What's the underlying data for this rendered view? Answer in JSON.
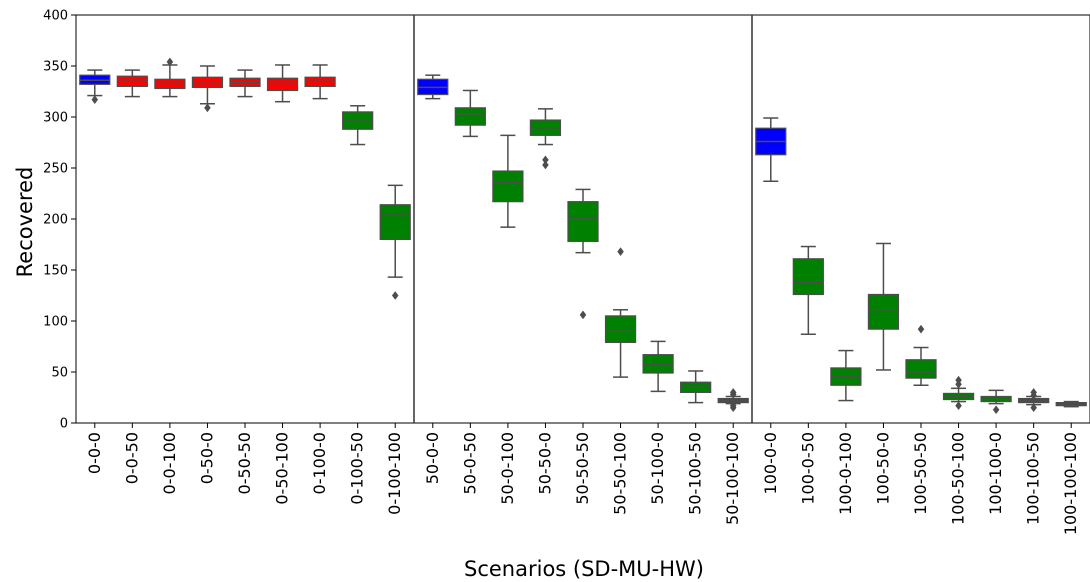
{
  "chart_data": {
    "type": "box",
    "ylabel": "Recovered",
    "xlabel": "Scenarios (SD-MU-HW)",
    "ylim": [
      0,
      400
    ],
    "yticks": [
      0,
      50,
      100,
      150,
      200,
      250,
      300,
      350,
      400
    ],
    "grid": false,
    "legend": "none",
    "group_separators_after": [
      "0-100-100",
      "50-100-100"
    ],
    "colors": {
      "baseline": "#0000ff",
      "red": "#ff0000",
      "green": "#008000",
      "line": "#4d4d4d"
    },
    "boxes": [
      {
        "label": "0-0-0",
        "color": "baseline",
        "whisker_low": 321,
        "q1": 332,
        "median": 336,
        "q3": 341,
        "whisker_high": 346,
        "outliers": [
          317
        ]
      },
      {
        "label": "0-0-50",
        "color": "red",
        "whisker_low": 320,
        "q1": 330,
        "median": 335,
        "q3": 340,
        "whisker_high": 346,
        "outliers": []
      },
      {
        "label": "0-0-100",
        "color": "red",
        "whisker_low": 320,
        "q1": 328,
        "median": 333,
        "q3": 337,
        "whisker_high": 351,
        "outliers": [
          354
        ]
      },
      {
        "label": "0-50-0",
        "color": "red",
        "whisker_low": 313,
        "q1": 329,
        "median": 333,
        "q3": 339,
        "whisker_high": 350,
        "outliers": [
          309
        ]
      },
      {
        "label": "0-50-50",
        "color": "red",
        "whisker_low": 320,
        "q1": 330,
        "median": 334,
        "q3": 338,
        "whisker_high": 346,
        "outliers": []
      },
      {
        "label": "0-50-100",
        "color": "red",
        "whisker_low": 315,
        "q1": 326,
        "median": 333,
        "q3": 338,
        "whisker_high": 351,
        "outliers": []
      },
      {
        "label": "0-100-0",
        "color": "red",
        "whisker_low": 318,
        "q1": 330,
        "median": 335,
        "q3": 339,
        "whisker_high": 351,
        "outliers": []
      },
      {
        "label": "0-100-50",
        "color": "green",
        "whisker_low": 273,
        "q1": 288,
        "median": 296,
        "q3": 305,
        "whisker_high": 311,
        "outliers": []
      },
      {
        "label": "0-100-100",
        "color": "green",
        "whisker_low": 143,
        "q1": 180,
        "median": 205,
        "q3": 214,
        "whisker_high": 233,
        "outliers": [
          125
        ]
      },
      {
        "label": "50-0-0",
        "color": "baseline",
        "whisker_low": 318,
        "q1": 322,
        "median": 329,
        "q3": 337,
        "whisker_high": 341,
        "outliers": []
      },
      {
        "label": "50-0-50",
        "color": "green",
        "whisker_low": 281,
        "q1": 292,
        "median": 303,
        "q3": 309,
        "whisker_high": 326,
        "outliers": []
      },
      {
        "label": "50-0-100",
        "color": "green",
        "whisker_low": 192,
        "q1": 217,
        "median": 236,
        "q3": 247,
        "whisker_high": 282,
        "outliers": []
      },
      {
        "label": "50-50-0",
        "color": "green",
        "whisker_low": 273,
        "q1": 282,
        "median": 288,
        "q3": 297,
        "whisker_high": 308,
        "outliers": [
          258,
          253
        ]
      },
      {
        "label": "50-50-50",
        "color": "green",
        "whisker_low": 167,
        "q1": 178,
        "median": 200,
        "q3": 217,
        "whisker_high": 229,
        "outliers": [
          106
        ]
      },
      {
        "label": "50-50-100",
        "color": "green",
        "whisker_low": 45,
        "q1": 79,
        "median": 90,
        "q3": 105,
        "whisker_high": 111,
        "outliers": [
          168
        ]
      },
      {
        "label": "50-100-0",
        "color": "green",
        "whisker_low": 31,
        "q1": 49,
        "median": 57,
        "q3": 67,
        "whisker_high": 80,
        "outliers": []
      },
      {
        "label": "50-100-50",
        "color": "green",
        "whisker_low": 20,
        "q1": 30,
        "median": 35,
        "q3": 40,
        "whisker_high": 51,
        "outliers": []
      },
      {
        "label": "50-100-100",
        "color": "green",
        "whisker_low": 19,
        "q1": 20,
        "median": 22,
        "q3": 24,
        "whisker_high": 26,
        "outliers": [
          30,
          28,
          17,
          15
        ]
      },
      {
        "label": "100-0-0",
        "color": "baseline",
        "whisker_low": 237,
        "q1": 263,
        "median": 276,
        "q3": 289,
        "whisker_high": 299,
        "outliers": []
      },
      {
        "label": "100-0-50",
        "color": "green",
        "whisker_low": 87,
        "q1": 126,
        "median": 138,
        "q3": 161,
        "whisker_high": 173,
        "outliers": []
      },
      {
        "label": "100-0-100",
        "color": "green",
        "whisker_low": 22,
        "q1": 37,
        "median": 46,
        "q3": 54,
        "whisker_high": 71,
        "outliers": []
      },
      {
        "label": "100-50-0",
        "color": "green",
        "whisker_low": 52,
        "q1": 92,
        "median": 111,
        "q3": 126,
        "whisker_high": 176,
        "outliers": []
      },
      {
        "label": "100-50-50",
        "color": "green",
        "whisker_low": 37,
        "q1": 44,
        "median": 50,
        "q3": 62,
        "whisker_high": 74,
        "outliers": [
          92
        ]
      },
      {
        "label": "100-50-100",
        "color": "green",
        "whisker_low": 21,
        "q1": 23,
        "median": 26,
        "q3": 29,
        "whisker_high": 34,
        "outliers": [
          42,
          38,
          17
        ]
      },
      {
        "label": "100-100-0",
        "color": "green",
        "whisker_low": 19,
        "q1": 21,
        "median": 23,
        "q3": 26,
        "whisker_high": 32,
        "outliers": [
          13
        ]
      },
      {
        "label": "100-100-50",
        "color": "green",
        "whisker_low": 18,
        "q1": 20,
        "median": 22,
        "q3": 24,
        "whisker_high": 26,
        "outliers": [
          30,
          27,
          15
        ]
      },
      {
        "label": "100-100-100",
        "color": "green",
        "whisker_low": 16,
        "q1": 17,
        "median": 18,
        "q3": 20,
        "whisker_high": 21,
        "outliers": []
      }
    ]
  }
}
